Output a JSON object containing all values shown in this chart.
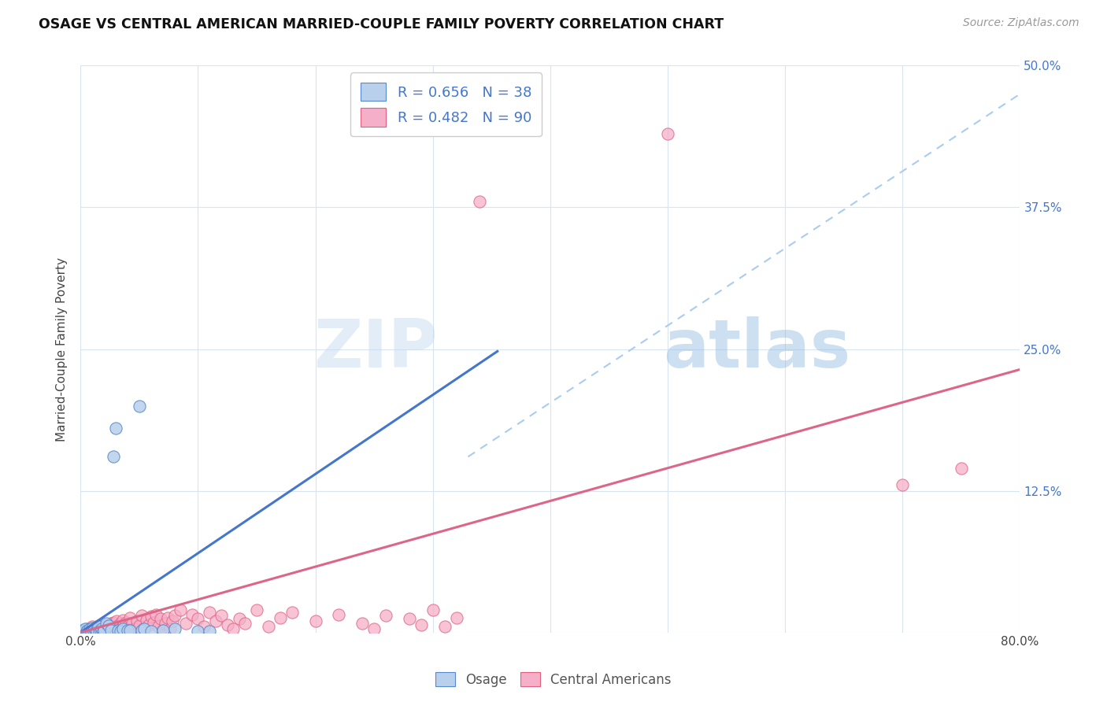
{
  "title": "OSAGE VS CENTRAL AMERICAN MARRIED-COUPLE FAMILY POVERTY CORRELATION CHART",
  "source": "Source: ZipAtlas.com",
  "ylabel": "Married-Couple Family Poverty",
  "xlim": [
    0.0,
    0.8
  ],
  "ylim": [
    -0.02,
    0.5
  ],
  "plot_ylim": [
    0.0,
    0.5
  ],
  "xticks": [
    0.0,
    0.1,
    0.2,
    0.3,
    0.4,
    0.5,
    0.6,
    0.7,
    0.8
  ],
  "xticklabels": [
    "0.0%",
    "",
    "",
    "",
    "",
    "",
    "",
    "",
    "80.0%"
  ],
  "yticks": [
    0.0,
    0.125,
    0.25,
    0.375,
    0.5
  ],
  "yticklabels": [
    "",
    "12.5%",
    "25.0%",
    "37.5%",
    "50.0%"
  ],
  "watermark": "ZIPatlas",
  "osage_color": "#b8d0ec",
  "central_color": "#f5afc8",
  "osage_edge_color": "#5588cc",
  "central_edge_color": "#e06080",
  "osage_line_color": "#4477cc",
  "central_line_color": "#dd6688",
  "dashed_line_color": "#aaccee",
  "background_color": "#ffffff",
  "grid_color": "#d8e4f0",
  "osage_scatter": [
    [
      0.001,
      0.001
    ],
    [
      0.002,
      0.002
    ],
    [
      0.003,
      0.001
    ],
    [
      0.004,
      0.003
    ],
    [
      0.005,
      0.001
    ],
    [
      0.006,
      0.002
    ],
    [
      0.007,
      0.001
    ],
    [
      0.008,
      0.003
    ],
    [
      0.009,
      0.002
    ],
    [
      0.01,
      0.004
    ],
    [
      0.011,
      0.001
    ],
    [
      0.012,
      0.003
    ],
    [
      0.013,
      0.002
    ],
    [
      0.014,
      0.001
    ],
    [
      0.015,
      0.005
    ],
    [
      0.016,
      0.001
    ],
    [
      0.017,
      0.002
    ],
    [
      0.018,
      0.003
    ],
    [
      0.019,
      0.001
    ],
    [
      0.02,
      0.002
    ],
    [
      0.022,
      0.008
    ],
    [
      0.024,
      0.006
    ],
    [
      0.026,
      0.002
    ],
    [
      0.028,
      0.155
    ],
    [
      0.03,
      0.18
    ],
    [
      0.032,
      0.002
    ],
    [
      0.034,
      0.001
    ],
    [
      0.036,
      0.003
    ],
    [
      0.04,
      0.002
    ],
    [
      0.042,
      0.002
    ],
    [
      0.05,
      0.2
    ],
    [
      0.052,
      0.002
    ],
    [
      0.054,
      0.003
    ],
    [
      0.06,
      0.001
    ],
    [
      0.07,
      0.002
    ],
    [
      0.08,
      0.003
    ],
    [
      0.1,
      0.001
    ],
    [
      0.11,
      0.001
    ]
  ],
  "central_scatter": [
    [
      0.001,
      0.001
    ],
    [
      0.002,
      0.002
    ],
    [
      0.003,
      0.001
    ],
    [
      0.004,
      0.002
    ],
    [
      0.005,
      0.003
    ],
    [
      0.006,
      0.001
    ],
    [
      0.007,
      0.002
    ],
    [
      0.008,
      0.001
    ],
    [
      0.009,
      0.003
    ],
    [
      0.01,
      0.005
    ],
    [
      0.011,
      0.002
    ],
    [
      0.012,
      0.004
    ],
    [
      0.013,
      0.001
    ],
    [
      0.014,
      0.003
    ],
    [
      0.015,
      0.006
    ],
    [
      0.016,
      0.002
    ],
    [
      0.017,
      0.004
    ],
    [
      0.018,
      0.001
    ],
    [
      0.019,
      0.003
    ],
    [
      0.02,
      0.007
    ],
    [
      0.021,
      0.002
    ],
    [
      0.022,
      0.005
    ],
    [
      0.023,
      0.001
    ],
    [
      0.024,
      0.006
    ],
    [
      0.025,
      0.003
    ],
    [
      0.026,
      0.008
    ],
    [
      0.027,
      0.004
    ],
    [
      0.028,
      0.009
    ],
    [
      0.029,
      0.005
    ],
    [
      0.03,
      0.002
    ],
    [
      0.031,
      0.01
    ],
    [
      0.032,
      0.006
    ],
    [
      0.033,
      0.003
    ],
    [
      0.034,
      0.008
    ],
    [
      0.035,
      0.004
    ],
    [
      0.036,
      0.011
    ],
    [
      0.037,
      0.007
    ],
    [
      0.038,
      0.002
    ],
    [
      0.039,
      0.009
    ],
    [
      0.04,
      0.005
    ],
    [
      0.042,
      0.013
    ],
    [
      0.044,
      0.008
    ],
    [
      0.046,
      0.003
    ],
    [
      0.048,
      0.01
    ],
    [
      0.05,
      0.006
    ],
    [
      0.052,
      0.015
    ],
    [
      0.054,
      0.004
    ],
    [
      0.056,
      0.011
    ],
    [
      0.058,
      0.007
    ],
    [
      0.06,
      0.014
    ],
    [
      0.062,
      0.009
    ],
    [
      0.064,
      0.016
    ],
    [
      0.066,
      0.005
    ],
    [
      0.068,
      0.012
    ],
    [
      0.07,
      0.002
    ],
    [
      0.072,
      0.008
    ],
    [
      0.074,
      0.013
    ],
    [
      0.076,
      0.003
    ],
    [
      0.078,
      0.01
    ],
    [
      0.08,
      0.015
    ],
    [
      0.085,
      0.02
    ],
    [
      0.09,
      0.008
    ],
    [
      0.095,
      0.016
    ],
    [
      0.1,
      0.012
    ],
    [
      0.105,
      0.005
    ],
    [
      0.11,
      0.018
    ],
    [
      0.115,
      0.01
    ],
    [
      0.12,
      0.015
    ],
    [
      0.125,
      0.007
    ],
    [
      0.13,
      0.003
    ],
    [
      0.135,
      0.012
    ],
    [
      0.14,
      0.008
    ],
    [
      0.15,
      0.02
    ],
    [
      0.16,
      0.005
    ],
    [
      0.17,
      0.013
    ],
    [
      0.18,
      0.018
    ],
    [
      0.2,
      0.01
    ],
    [
      0.22,
      0.016
    ],
    [
      0.24,
      0.008
    ],
    [
      0.25,
      0.003
    ],
    [
      0.26,
      0.015
    ],
    [
      0.28,
      0.012
    ],
    [
      0.29,
      0.007
    ],
    [
      0.3,
      0.02
    ],
    [
      0.31,
      0.005
    ],
    [
      0.32,
      0.013
    ],
    [
      0.34,
      0.38
    ],
    [
      0.5,
      0.44
    ],
    [
      0.7,
      0.13
    ],
    [
      0.75,
      0.145
    ]
  ],
  "osage_line": {
    "x0": 0.0,
    "x1": 0.355,
    "y0": 0.0,
    "y1": 0.248
  },
  "central_line": {
    "x0": 0.0,
    "x1": 0.8,
    "y0": 0.0,
    "y1": 0.232
  },
  "dashed_line": {
    "x0": 0.33,
    "x1": 0.8,
    "y0": 0.155,
    "y1": 0.475
  }
}
